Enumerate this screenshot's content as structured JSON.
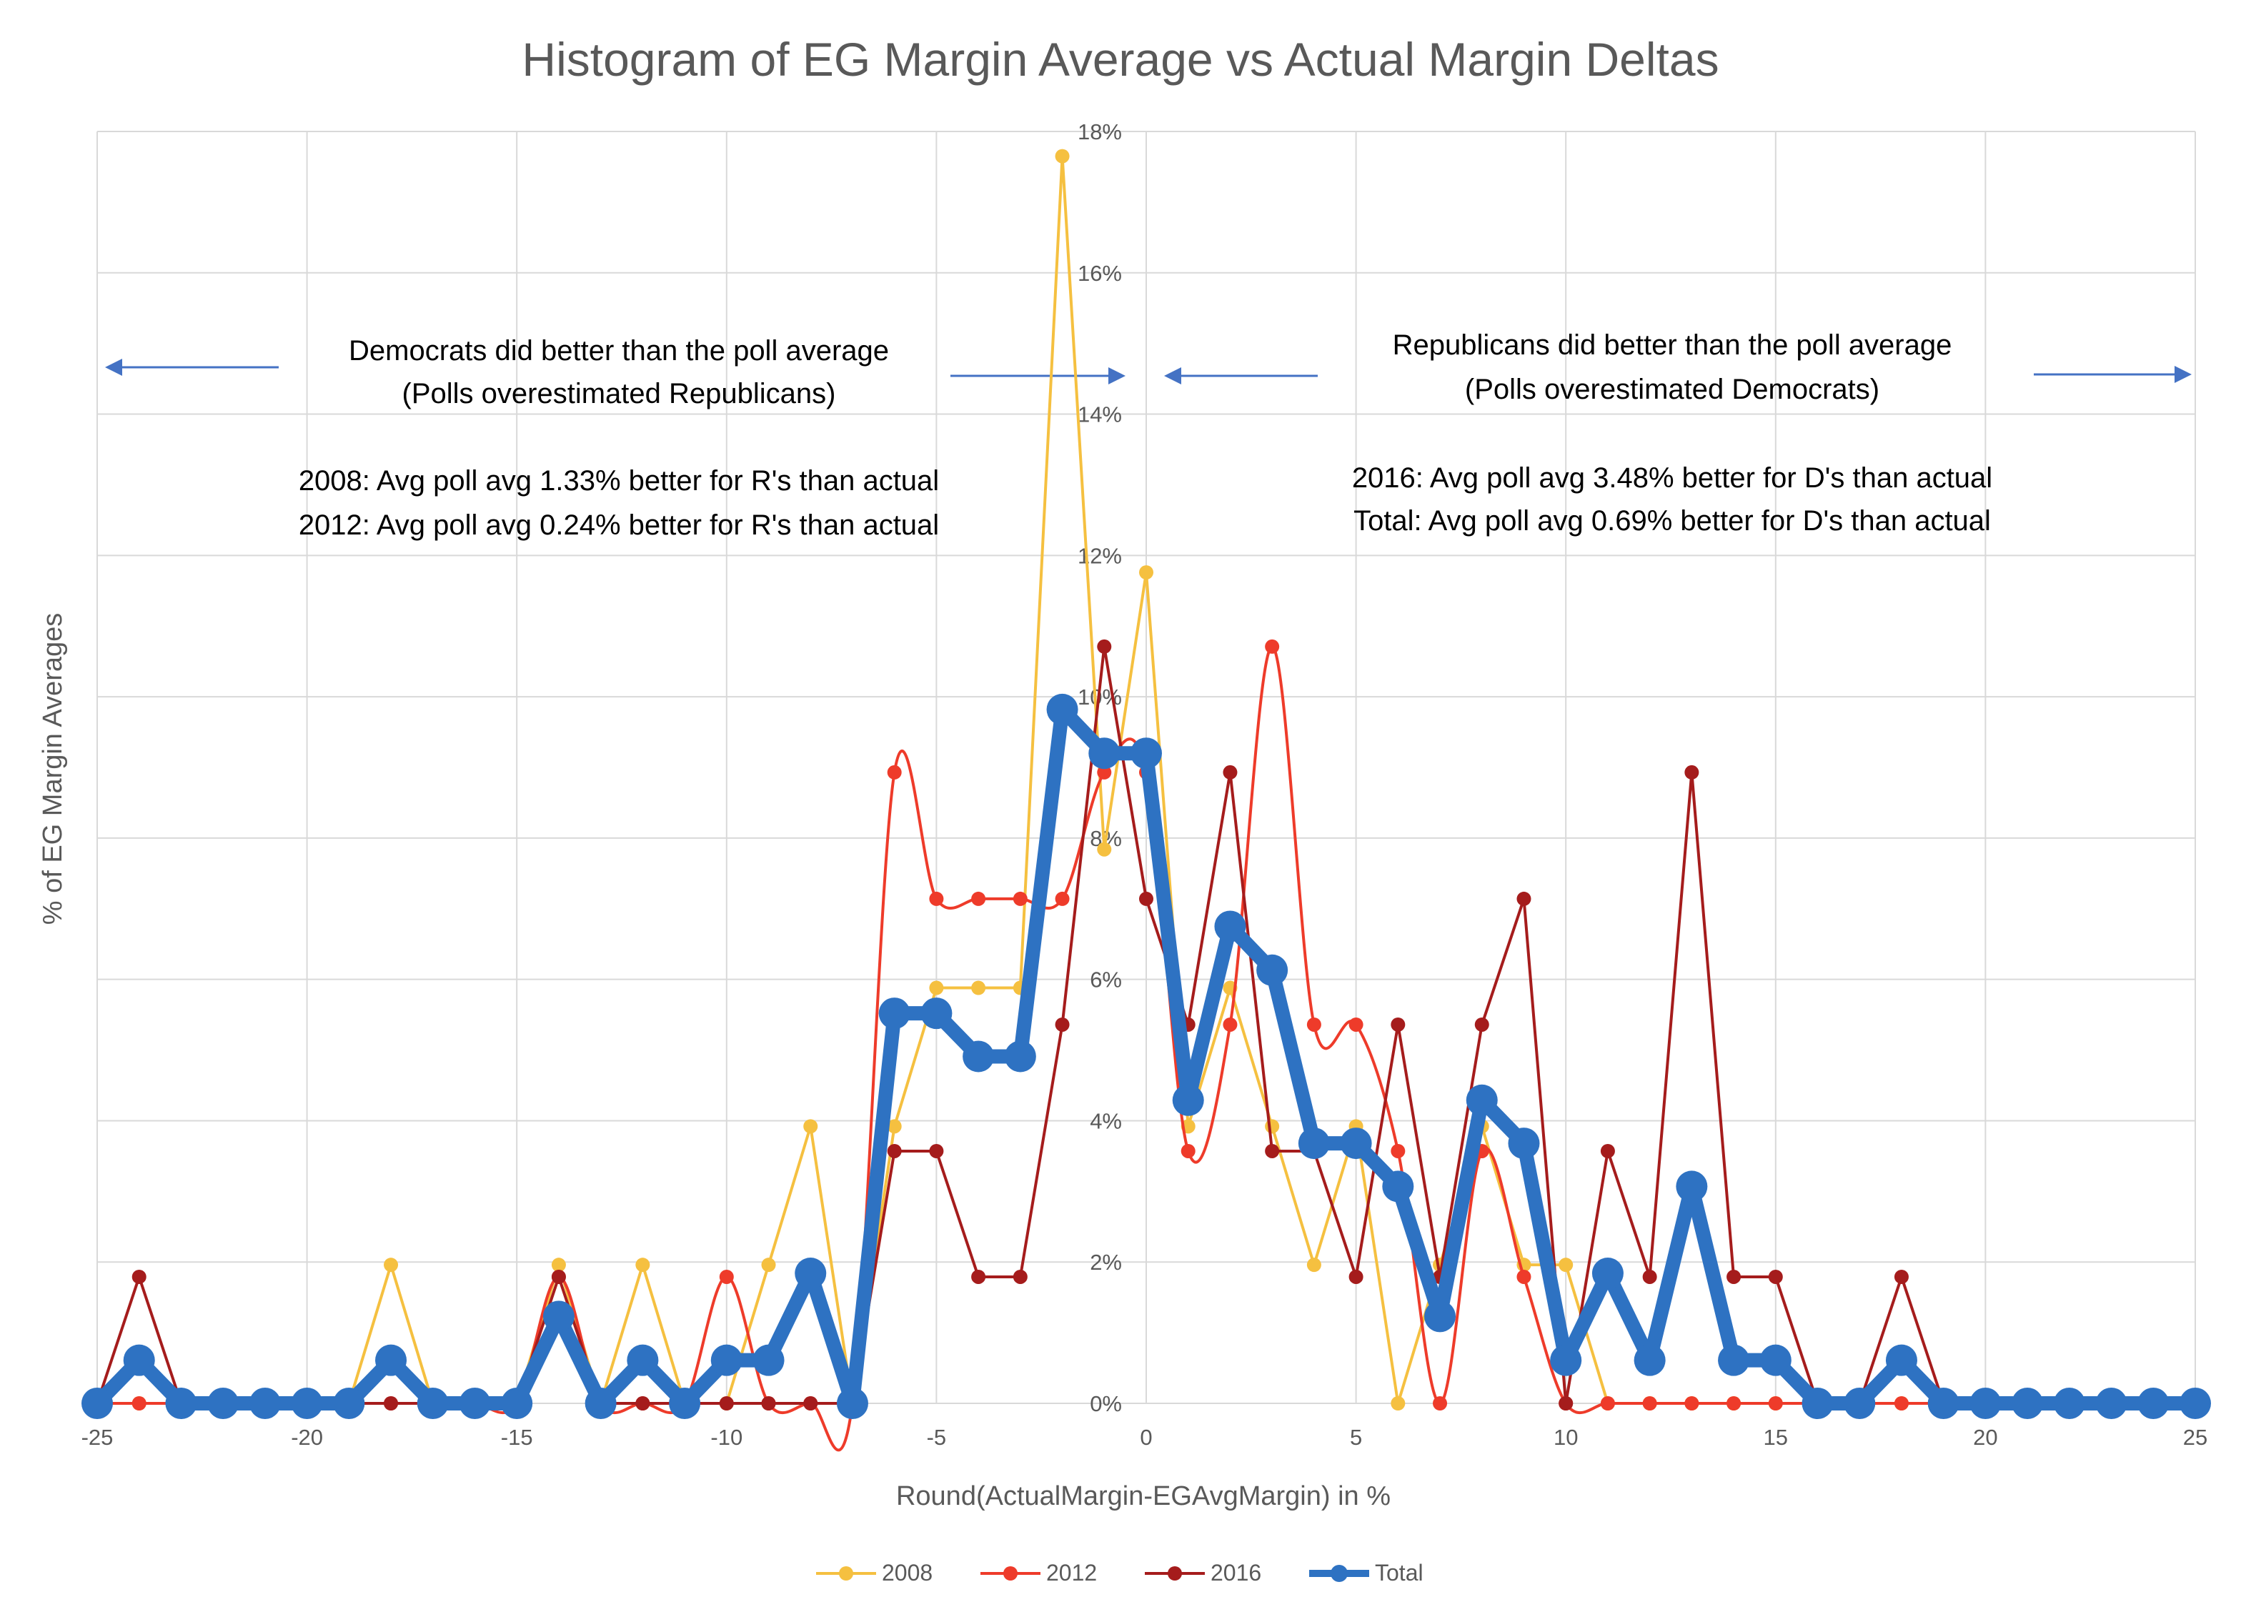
{
  "chart_data": {
    "type": "line",
    "title": "Histogram of EG Margin Average vs Actual Margin Deltas",
    "xlabel": "Round(ActualMargin-EGAvgMargin) in %",
    "ylabel": "% of EG Margin Averages",
    "xlim": [
      -25,
      25
    ],
    "ylim": [
      0,
      18
    ],
    "x_ticks": [
      "-25",
      "-20",
      "-15",
      "-10",
      "-5",
      "0",
      "5",
      "10",
      "15",
      "20",
      "25"
    ],
    "y_ticks": [
      "0%",
      "2%",
      "4%",
      "6%",
      "8%",
      "10%",
      "12%",
      "14%",
      "16%",
      "18%"
    ],
    "grid": true,
    "legend_position": "bottom",
    "x": [
      -25,
      -24,
      -23,
      -22,
      -21,
      -20,
      -19,
      -18,
      -17,
      -16,
      -15,
      -14,
      -13,
      -12,
      -11,
      -10,
      -9,
      -8,
      -7,
      -6,
      -5,
      -4,
      -3,
      -2,
      -1,
      0,
      1,
      2,
      3,
      4,
      5,
      6,
      7,
      8,
      9,
      10,
      11,
      12,
      13,
      14,
      15,
      16,
      17,
      18,
      19,
      20,
      21,
      22,
      23,
      24,
      25
    ],
    "series": [
      {
        "name": "2008",
        "color": "#f5c040",
        "values": [
          0,
          0,
          0,
          0,
          0,
          0,
          0,
          1.96,
          0,
          0,
          0,
          1.96,
          0,
          1.96,
          0,
          0,
          1.96,
          3.92,
          0,
          3.92,
          5.88,
          5.88,
          5.88,
          17.65,
          7.84,
          11.76,
          3.92,
          5.88,
          3.92,
          1.96,
          3.92,
          0,
          1.96,
          3.92,
          1.96,
          1.96,
          0,
          0,
          0,
          0,
          0,
          0,
          0,
          0,
          0,
          0,
          0,
          0,
          0,
          0,
          0
        ]
      },
      {
        "name": "2012",
        "color": "#ee3b2a",
        "values": [
          0,
          0,
          0,
          0,
          0,
          0,
          0,
          0,
          0,
          0,
          0,
          1.79,
          0,
          0,
          0,
          1.79,
          0,
          0,
          0,
          8.93,
          7.14,
          7.14,
          7.14,
          7.14,
          8.93,
          8.93,
          3.57,
          5.36,
          10.71,
          5.36,
          5.36,
          3.57,
          0,
          3.57,
          1.79,
          0,
          0,
          0,
          0,
          0,
          0,
          0,
          0,
          0,
          0,
          0,
          0,
          0,
          0,
          0,
          0
        ]
      },
      {
        "name": "2016",
        "color": "#a51c1c",
        "values": [
          0,
          1.79,
          0,
          0,
          0,
          0,
          0,
          0,
          0,
          0,
          0,
          1.79,
          0,
          0,
          0,
          0,
          0,
          0,
          0,
          3.57,
          3.57,
          1.79,
          1.79,
          5.36,
          10.71,
          7.14,
          5.36,
          8.93,
          3.57,
          3.57,
          1.79,
          5.36,
          1.79,
          5.36,
          7.14,
          0,
          3.57,
          1.79,
          8.93,
          1.79,
          1.79,
          0,
          0,
          1.79,
          0,
          0,
          0,
          0,
          0,
          0,
          0
        ]
      },
      {
        "name": "Total",
        "color": "#2e72c2",
        "values": [
          0,
          0.61,
          0,
          0,
          0,
          0,
          0,
          0.61,
          0,
          0,
          0,
          1.23,
          0,
          0.61,
          0,
          0.61,
          0.61,
          1.84,
          0,
          5.52,
          5.52,
          4.91,
          4.91,
          9.82,
          9.2,
          9.2,
          4.29,
          6.75,
          6.13,
          3.68,
          3.68,
          3.07,
          1.23,
          4.29,
          3.68,
          0.61,
          1.84,
          0.61,
          3.07,
          0.61,
          0.61,
          0,
          0,
          0.61,
          0,
          0,
          0,
          0,
          0,
          0,
          0
        ]
      }
    ],
    "annotations": {
      "left_heading_1": "Democrats did better than the poll average",
      "left_heading_2": "(Polls overestimated Republicans)",
      "left_stat_1": "2008: Avg poll avg 1.33% better for R's than actual",
      "left_stat_2": "2012: Avg poll avg 0.24% better for R's than actual",
      "right_heading_1": "Republicans did better than the poll average",
      "right_heading_2": "(Polls overestimated Democrats)",
      "right_stat_1": "2016: Avg poll avg 3.48% better for D's than actual",
      "right_stat_2": "Total: Avg poll avg 0.69% better for D's than actual"
    },
    "annotation_arrow_color": "#4472c4"
  }
}
